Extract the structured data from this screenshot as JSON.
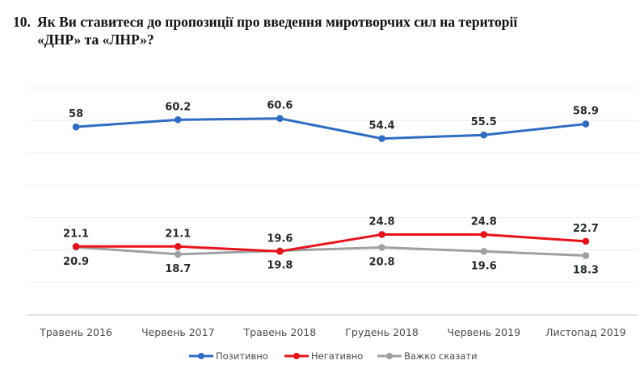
{
  "title": {
    "number": "10.",
    "line1": "Як Ви ставитеся до пропозиції про введення миротворчих сил на території",
    "line2": "«ДНР» та «ЛНР»?"
  },
  "chart_data": {
    "type": "line",
    "title": "10. Як Ви ставитеся до пропозиції про введення миротворчих сил на території «ДНР» та «ЛНР»?",
    "xlabel": "",
    "ylabel": "",
    "categories": [
      "Травень 2016",
      "Червень 2017",
      "Травень 2018",
      "Грудень 2018",
      "Червень 2019",
      "Листопад 2019"
    ],
    "ylim": [
      0,
      70
    ],
    "grid": true,
    "gridlines_step": 10,
    "legend_position": "bottom",
    "series": [
      {
        "name": "Позитивно",
        "color": "#2f6cc2",
        "values": [
          58,
          60.2,
          60.6,
          54.4,
          55.5,
          58.9
        ],
        "label_position": "above"
      },
      {
        "name": "Негативно",
        "color": "#e8121b",
        "values": [
          21.1,
          21.1,
          19.6,
          24.8,
          24.8,
          22.7
        ],
        "label_position": "above"
      },
      {
        "name": "Важко сказати",
        "color": "#9da1a4",
        "values": [
          20.9,
          18.7,
          19.8,
          20.8,
          19.6,
          18.3
        ],
        "label_position": "below"
      }
    ]
  }
}
